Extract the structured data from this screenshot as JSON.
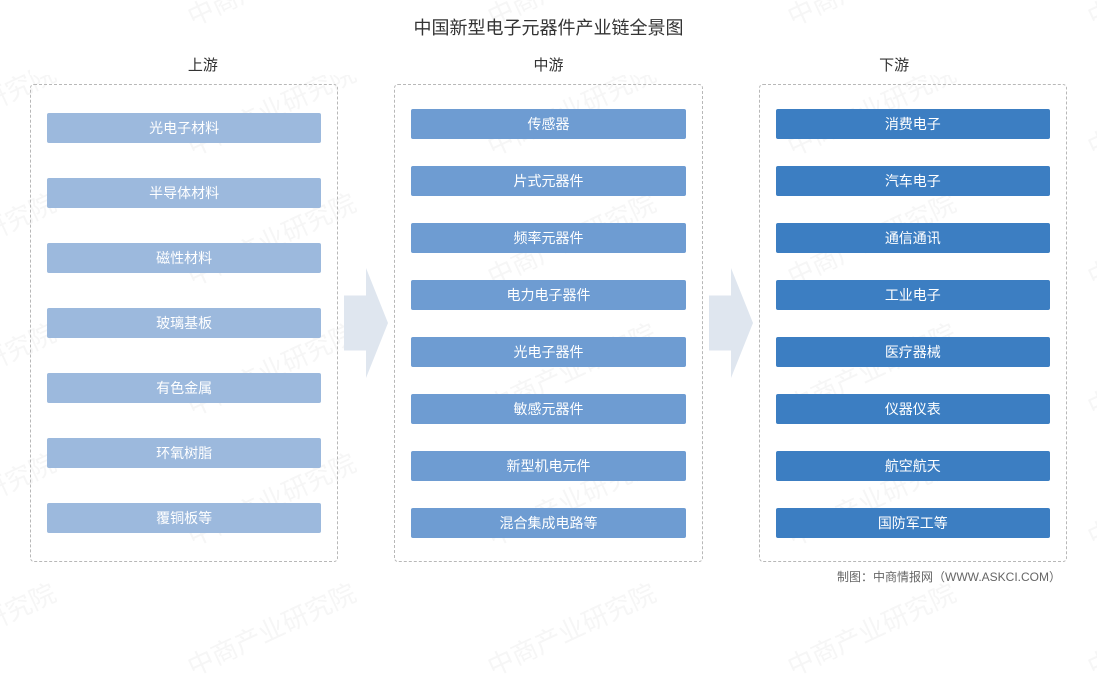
{
  "title": "中国新型电子元器件产业链全景图",
  "axis": {
    "labels": [
      "上游",
      "中游",
      "下游"
    ]
  },
  "stages": [
    {
      "name": "upstream",
      "bg_color": "#9cb9dd",
      "items": [
        "光电子材料",
        "半导体材料",
        "磁性材料",
        "玻璃基板",
        "有色金属",
        "环氧树脂",
        "覆铜板等"
      ]
    },
    {
      "name": "midstream",
      "bg_color": "#6e9cd2",
      "items": [
        "传感器",
        "片式元器件",
        "频率元器件",
        "电力电子器件",
        "光电子器件",
        "敏感元器件",
        "新型机电元件",
        "混合集成电路等"
      ]
    },
    {
      "name": "downstream",
      "bg_color": "#3c7ec2",
      "items": [
        "消费电子",
        "汽车电子",
        "通信通讯",
        "工业电子",
        "医疗器械",
        "仪器仪表",
        "航空航天",
        "国防军工等"
      ]
    }
  ],
  "arrows": {
    "fill": "#dfe6ef",
    "width": 44,
    "height": 110
  },
  "footer": "制图：中商情报网（WWW.ASKCI.COM）",
  "watermark": {
    "text": "中商产业研究院",
    "color": "#888888",
    "opacity": 0.08,
    "fontsize": 26
  },
  "style": {
    "page_bg": "#ffffff",
    "dash_border_color": "#b8b8b8",
    "axis_line_color": "#bfbfbf",
    "title_color": "#333333",
    "title_fontsize": 18,
    "item_text_color": "#ffffff",
    "item_fontsize": 14,
    "item_height": 30,
    "axis_label_fontsize": 15,
    "footer_fontsize": 12,
    "footer_color": "#666666"
  }
}
